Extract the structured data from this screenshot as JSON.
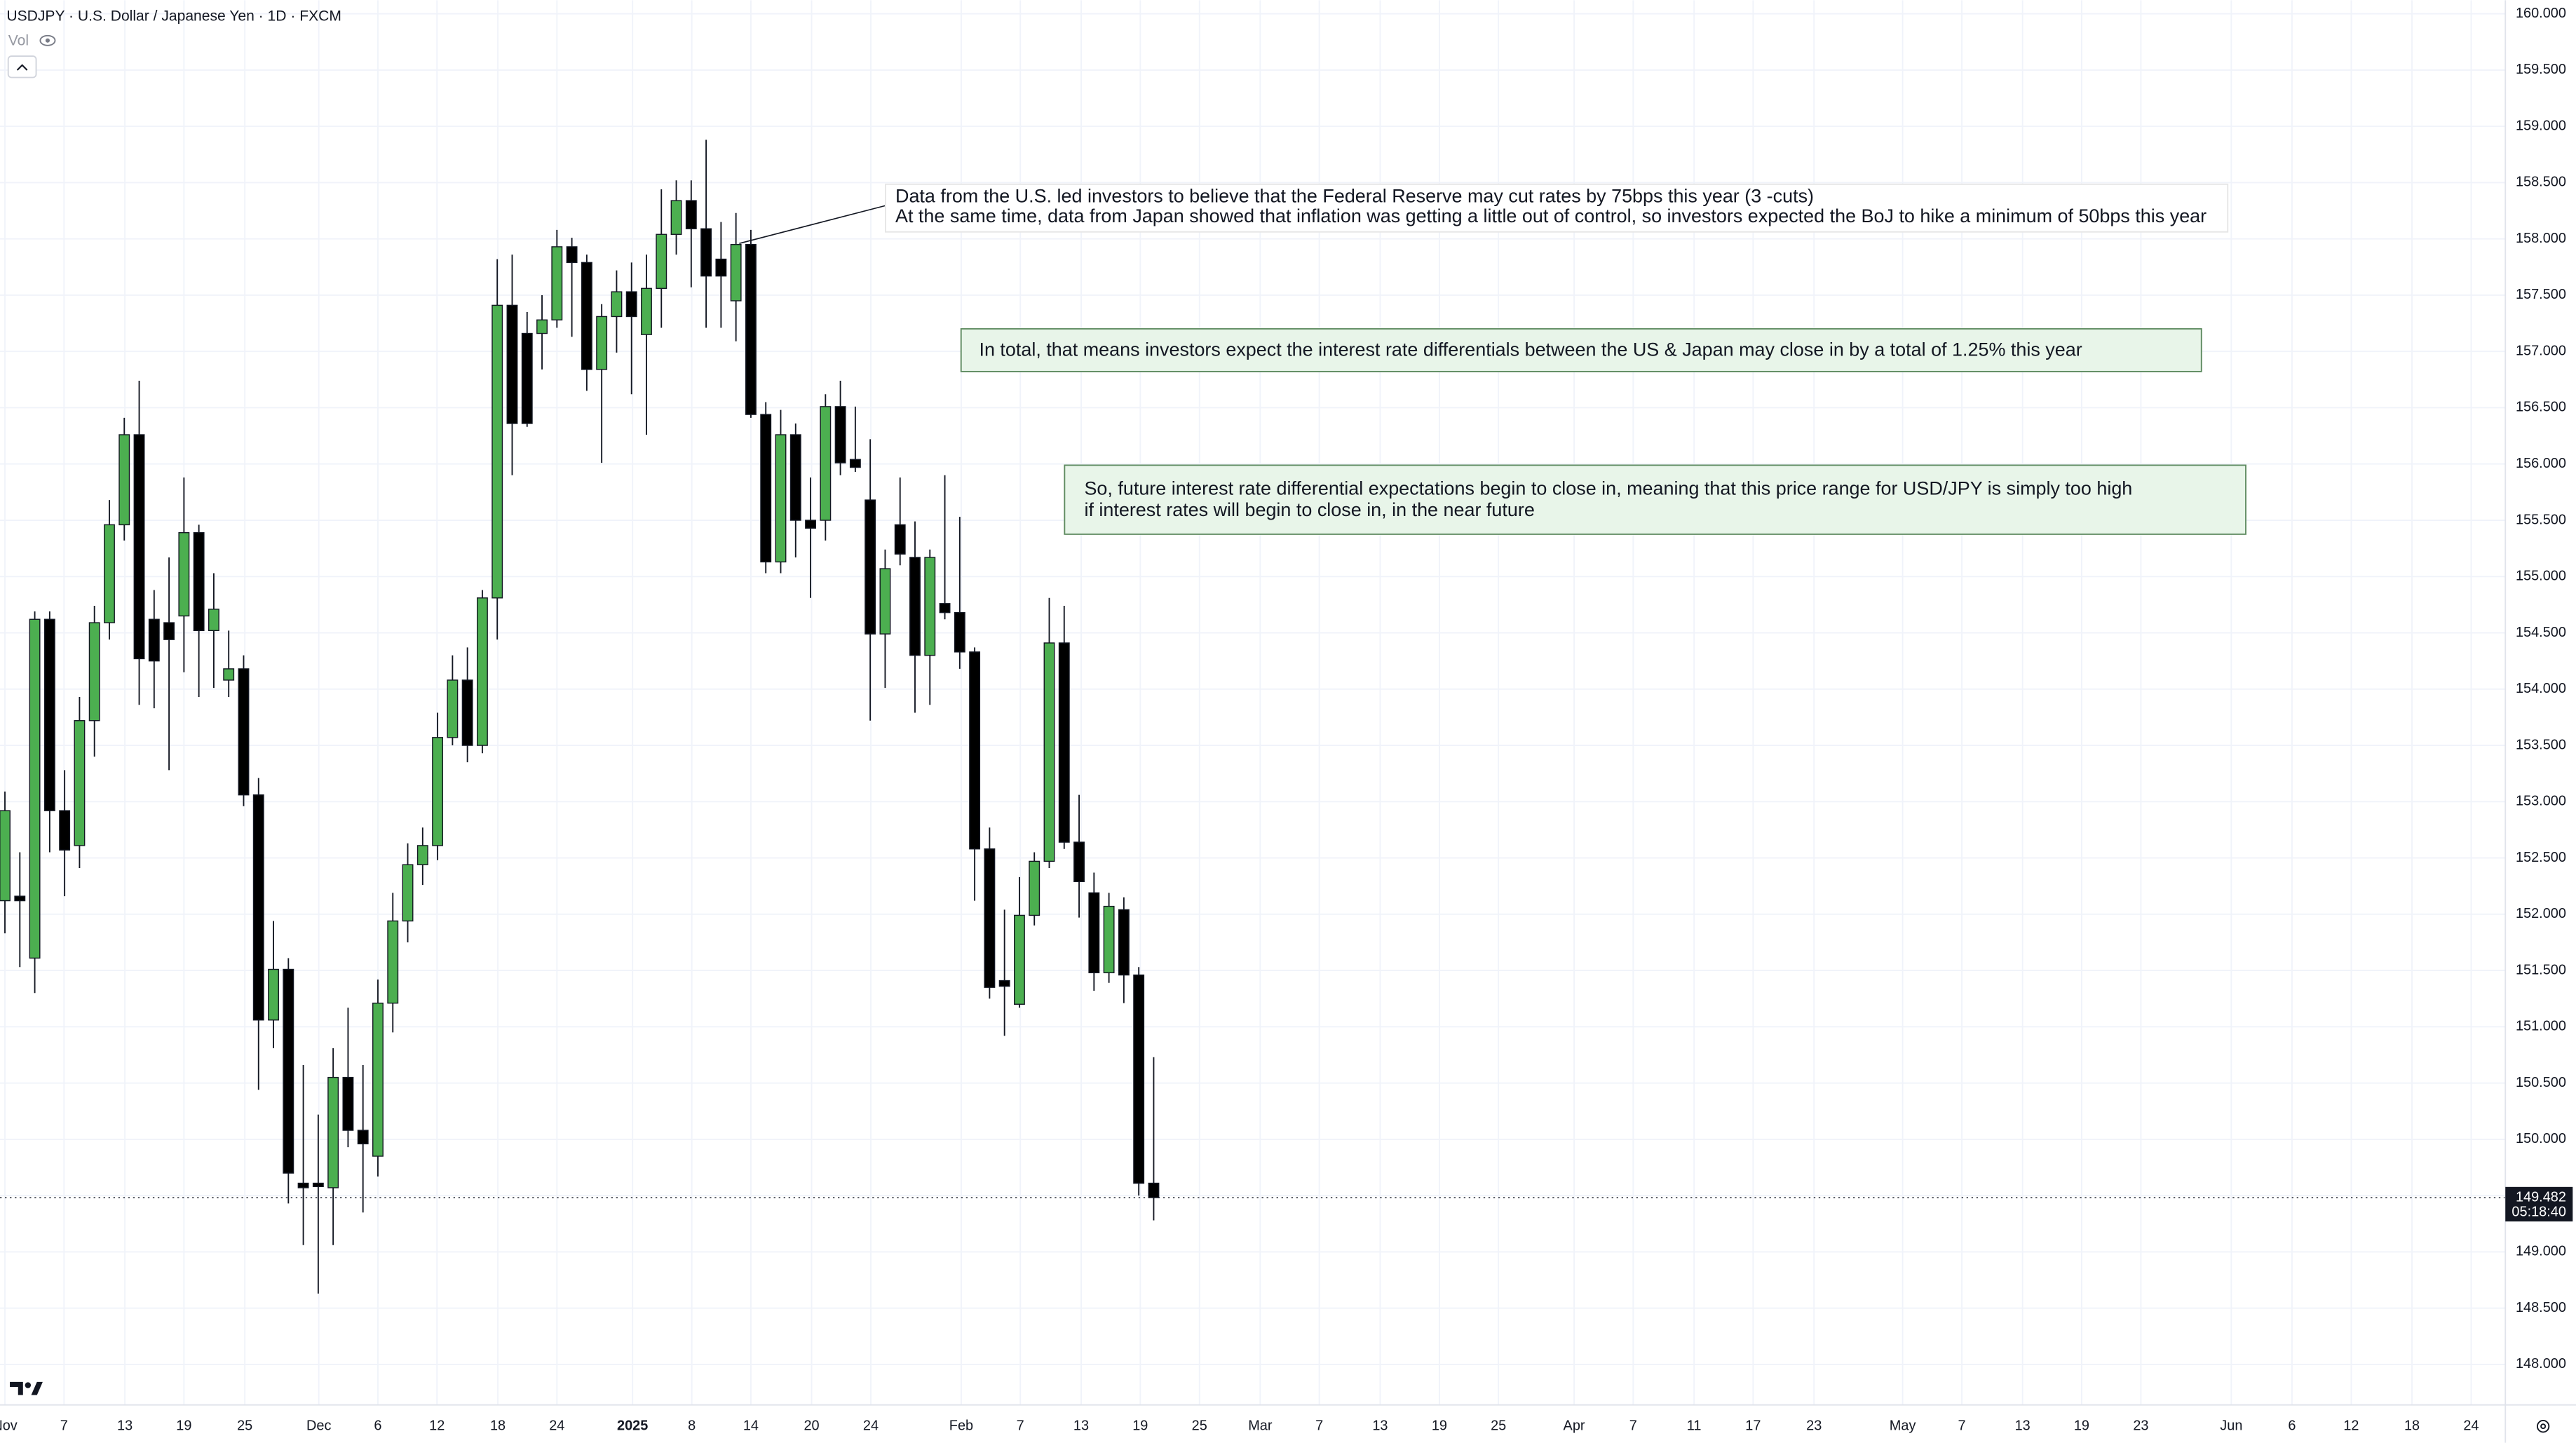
{
  "chart_data": {
    "type": "candlestick",
    "title": "USDJPY · U.S. Dollar / Japanese Yen · 1D · FXCM",
    "indicator_label": "Vol",
    "up_color": "#4caf50",
    "down_color": "#000000",
    "grid": true,
    "x": [
      0,
      1,
      2,
      3,
      4,
      5,
      6,
      7,
      8,
      9,
      10,
      11,
      12,
      13,
      14,
      15,
      16,
      17,
      18,
      19,
      20,
      21,
      22,
      23,
      24,
      25,
      26,
      27,
      28,
      29,
      30,
      31,
      32,
      33,
      34,
      35,
      36,
      37,
      38,
      39,
      40,
      41,
      42,
      43,
      44,
      45,
      46,
      47,
      48,
      49,
      50,
      51,
      52,
      53,
      54,
      55,
      56,
      57,
      58,
      59,
      60,
      61,
      62,
      63,
      64,
      65,
      66,
      67,
      68,
      69,
      70,
      71,
      72,
      73,
      74,
      75,
      76,
      77
    ],
    "open": [
      152.12,
      152.16,
      151.61,
      154.62,
      152.92,
      152.61,
      153.72,
      154.59,
      155.46,
      156.26,
      154.62,
      154.59,
      154.65,
      155.39,
      154.52,
      154.08,
      154.18,
      153.06,
      151.06,
      151.51,
      149.61,
      149.61,
      149.57,
      150.55,
      150.08,
      149.85,
      151.21,
      151.94,
      152.44,
      152.61,
      153.57,
      154.08,
      153.5,
      154.81,
      157.41,
      157.16,
      157.16,
      157.28,
      157.93,
      157.79,
      156.84,
      157.31,
      157.53,
      157.15,
      157.56,
      158.04,
      158.34,
      158.09,
      157.82,
      157.45,
      157.95,
      156.44,
      155.13,
      156.26,
      155.5,
      155.5,
      156.51,
      156.04,
      155.68,
      154.49,
      155.46,
      155.17,
      154.3,
      154.76,
      154.68,
      154.33,
      152.58,
      151.41,
      151.2,
      151.99,
      152.47,
      154.41,
      152.64,
      152.19,
      151.48,
      152.04,
      151.46,
      149.61
    ],
    "high": [
      153.09,
      152.55,
      154.69,
      154.69,
      153.28,
      153.93,
      154.74,
      155.68,
      156.41,
      156.74,
      154.88,
      155.17,
      155.88,
      155.46,
      155.03,
      154.52,
      154.3,
      153.21,
      151.94,
      151.61,
      150.66,
      150.22,
      150.81,
      151.17,
      150.66,
      151.42,
      152.19,
      152.63,
      152.77,
      153.79,
      154.3,
      154.37,
      154.88,
      157.82,
      157.86,
      157.35,
      157.5,
      158.08,
      158.01,
      157.86,
      157.42,
      157.72,
      157.79,
      157.86,
      158.44,
      158.52,
      158.52,
      158.88,
      158.15,
      158.23,
      158.08,
      156.55,
      156.48,
      156.36,
      155.88,
      156.62,
      156.74,
      156.51,
      156.22,
      155.24,
      155.88,
      155.49,
      155.24,
      155.9,
      155.53,
      154.37,
      152.77,
      152.04,
      152.33,
      152.55,
      154.81,
      154.74,
      153.06,
      152.37,
      152.19,
      152.15,
      151.53,
      150.73
    ],
    "low": [
      151.83,
      151.53,
      151.3,
      152.55,
      152.16,
      152.41,
      153.4,
      154.44,
      155.32,
      153.86,
      153.83,
      153.28,
      154.15,
      153.93,
      154.01,
      153.93,
      152.96,
      150.44,
      150.81,
      149.43,
      149.06,
      148.63,
      149.06,
      149.93,
      149.35,
      149.67,
      150.95,
      151.75,
      152.26,
      152.48,
      153.5,
      153.35,
      153.43,
      154.44,
      155.9,
      156.33,
      156.84,
      157.21,
      157.13,
      156.65,
      156.01,
      156.99,
      156.62,
      156.26,
      157.21,
      157.86,
      157.57,
      157.21,
      157.21,
      157.09,
      156.41,
      155.03,
      155.03,
      155.17,
      154.81,
      155.32,
      155.9,
      155.93,
      153.72,
      154.01,
      155.1,
      153.79,
      153.86,
      154.62,
      154.18,
      152.12,
      151.25,
      150.92,
      151.17,
      151.9,
      152.41,
      152.58,
      151.97,
      151.32,
      151.39,
      151.21,
      149.5,
      149.28
    ],
    "close": [
      152.92,
      152.12,
      154.62,
      152.92,
      152.57,
      153.72,
      154.59,
      155.46,
      156.26,
      154.27,
      154.25,
      154.44,
      155.39,
      154.52,
      154.71,
      154.18,
      153.06,
      151.06,
      151.51,
      149.7,
      149.57,
      149.58,
      150.55,
      150.08,
      149.96,
      151.21,
      151.94,
      152.44,
      152.61,
      153.57,
      154.08,
      153.5,
      154.81,
      157.41,
      156.36,
      156.36,
      157.28,
      157.93,
      157.79,
      156.84,
      157.31,
      157.53,
      157.31,
      157.56,
      158.04,
      158.34,
      158.09,
      157.67,
      157.67,
      157.95,
      156.44,
      155.13,
      156.26,
      155.5,
      155.43,
      156.51,
      156.01,
      155.97,
      154.49,
      155.07,
      155.2,
      154.3,
      155.17,
      154.68,
      154.33,
      152.58,
      151.35,
      151.36,
      151.99,
      152.47,
      154.41,
      152.64,
      152.29,
      151.48,
      152.07,
      151.46,
      149.61,
      149.482
    ],
    "countdown": "05:18:40",
    "ylim": [
      147.64,
      160.12
    ],
    "yticks": [
      {
        "value": 148.0,
        "label": "148.000"
      },
      {
        "value": 148.5,
        "label": "148.500"
      },
      {
        "value": 149.0,
        "label": "149.000"
      },
      {
        "value": 149.5,
        "label": "149.500"
      },
      {
        "value": 150.0,
        "label": "150.000"
      },
      {
        "value": 150.5,
        "label": "150.500"
      },
      {
        "value": 151.0,
        "label": "151.000"
      },
      {
        "value": 151.5,
        "label": "151.500"
      },
      {
        "value": 152.0,
        "label": "152.000"
      },
      {
        "value": 152.5,
        "label": "152.500"
      },
      {
        "value": 153.0,
        "label": "153.000"
      },
      {
        "value": 153.5,
        "label": "153.500"
      },
      {
        "value": 154.0,
        "label": "154.000"
      },
      {
        "value": 154.5,
        "label": "154.500"
      },
      {
        "value": 155.0,
        "label": "155.000"
      },
      {
        "value": 155.5,
        "label": "155.500"
      },
      {
        "value": 156.0,
        "label": "156.000"
      },
      {
        "value": 156.5,
        "label": "156.500"
      },
      {
        "value": 157.0,
        "label": "157.000"
      },
      {
        "value": 157.5,
        "label": "157.500"
      },
      {
        "value": 158.0,
        "label": "158.000"
      },
      {
        "value": 158.5,
        "label": "158.500"
      },
      {
        "value": 159.0,
        "label": "159.000"
      },
      {
        "value": 159.5,
        "label": "159.500"
      },
      {
        "value": 160.0,
        "label": "160.000"
      }
    ],
    "xlim": [
      -0.33,
      167.6
    ],
    "xticks": [
      {
        "value": 0,
        "label": "Nov"
      },
      {
        "value": 3.96,
        "label": "7"
      },
      {
        "value": 8.04,
        "label": "13"
      },
      {
        "value": 12.0,
        "label": "19"
      },
      {
        "value": 16.08,
        "label": "25"
      },
      {
        "value": 21.04,
        "label": "Dec"
      },
      {
        "value": 25.0,
        "label": "6"
      },
      {
        "value": 28.96,
        "label": "12"
      },
      {
        "value": 33.04,
        "label": "18"
      },
      {
        "value": 37.0,
        "label": "24"
      },
      {
        "value": 42.07,
        "label": "2025"
      },
      {
        "value": 46.04,
        "label": "8"
      },
      {
        "value": 50.0,
        "label": "14"
      },
      {
        "value": 54.07,
        "label": "20"
      },
      {
        "value": 58.04,
        "label": "24"
      },
      {
        "value": 64.1,
        "label": "Feb"
      },
      {
        "value": 68.06,
        "label": "7"
      },
      {
        "value": 72.14,
        "label": "13"
      },
      {
        "value": 76.1,
        "label": "19"
      },
      {
        "value": 80.07,
        "label": "25"
      },
      {
        "value": 84.14,
        "label": "Mar"
      },
      {
        "value": 88.1,
        "label": "7"
      },
      {
        "value": 92.18,
        "label": "13"
      },
      {
        "value": 96.15,
        "label": "19"
      },
      {
        "value": 100.11,
        "label": "25"
      },
      {
        "value": 105.18,
        "label": "Apr"
      },
      {
        "value": 109.14,
        "label": "7"
      },
      {
        "value": 113.22,
        "label": "11"
      },
      {
        "value": 117.18,
        "label": "17"
      },
      {
        "value": 121.26,
        "label": "23"
      },
      {
        "value": 127.2,
        "label": "May"
      },
      {
        "value": 131.17,
        "label": "7"
      },
      {
        "value": 135.24,
        "label": "13"
      },
      {
        "value": 139.2,
        "label": "19"
      },
      {
        "value": 143.17,
        "label": "23"
      },
      {
        "value": 149.23,
        "label": "Jun"
      },
      {
        "value": 153.3,
        "label": "6"
      },
      {
        "value": 157.27,
        "label": "12"
      },
      {
        "value": 161.34,
        "label": "18"
      },
      {
        "value": 165.31,
        "label": "24"
      }
    ],
    "annotations": [
      {
        "lines": [
          "Data from the U.S. led investors to believe that the Federal Reserve may cut rates by 75bps this year (3 -cuts)",
          "At the same time, data from Japan showed that inflation was getting a little out of control, so investors expected the BoJ to hike a minimum of 50bps this year"
        ]
      },
      {
        "lines": [
          "In total, that means investors expect the interest rate differentials between the US & Japan may close in by a total of 1.25% this year"
        ]
      },
      {
        "lines": [
          "So, future interest rate differential expectations begin to close in, meaning that this price range for USD/JPY is simply too high",
          "if interest rates will begin to close in, in the near future"
        ]
      }
    ]
  }
}
